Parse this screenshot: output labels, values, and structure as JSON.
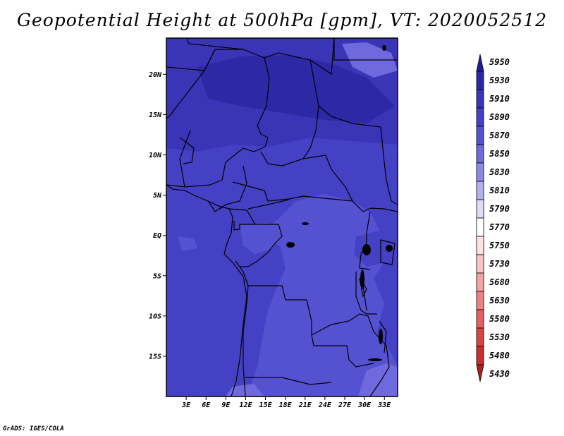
{
  "title": "Geopotential Height at 500hPa [gpm], VT: 2020052512",
  "credit": "GrADS: IGES/COLA",
  "chart_data": {
    "type": "heatmap",
    "variable": "Geopotential Height at 500hPa",
    "units": "gpm",
    "valid_time": "2020052512",
    "lon_range": [
      0,
      35
    ],
    "lat_range": [
      -20,
      24.5
    ],
    "lat_ticks": [
      {
        "v": 20,
        "label": "20N"
      },
      {
        "v": 15,
        "label": "15N"
      },
      {
        "v": 10,
        "label": "10N"
      },
      {
        "v": 5,
        "label": "5N"
      },
      {
        "v": 0,
        "label": "EQ"
      },
      {
        "v": -5,
        "label": "5S"
      },
      {
        "v": -10,
        "label": "10S"
      },
      {
        "v": -15,
        "label": "15S"
      }
    ],
    "lon_ticks": [
      {
        "v": 3,
        "label": "3E"
      },
      {
        "v": 6,
        "label": "6E"
      },
      {
        "v": 9,
        "label": "9E"
      },
      {
        "v": 12,
        "label": "12E"
      },
      {
        "v": 15,
        "label": "15E"
      },
      {
        "v": 18,
        "label": "18E"
      },
      {
        "v": 21,
        "label": "21E"
      },
      {
        "v": 24,
        "label": "24E"
      },
      {
        "v": 27,
        "label": "27E"
      },
      {
        "v": 30,
        "label": "30E"
      },
      {
        "v": 33,
        "label": "33E"
      }
    ],
    "colorbar": [
      {
        "label": "5950",
        "color": "#221e96"
      },
      {
        "label": "5930",
        "color": "#2d28a6"
      },
      {
        "label": "5910",
        "color": "#3a35b6"
      },
      {
        "label": "5890",
        "color": "#4541c4"
      },
      {
        "label": "5870",
        "color": "#5552d2"
      },
      {
        "label": "5850",
        "color": "#6e6ade"
      },
      {
        "label": "5830",
        "color": "#8c89e6"
      },
      {
        "label": "5810",
        "color": "#b2b0ef"
      },
      {
        "label": "5790",
        "color": "#dcdbf8"
      },
      {
        "label": "5770",
        "color": "#ffffff"
      },
      {
        "label": "5750",
        "color": "#fde2e2"
      },
      {
        "label": "5730",
        "color": "#fbc5c5"
      },
      {
        "label": "5680",
        "color": "#f4a3a3"
      },
      {
        "label": "5630",
        "color": "#ec8282"
      },
      {
        "label": "5580",
        "color": "#e26262"
      },
      {
        "label": "5530",
        "color": "#d84444"
      },
      {
        "label": "5480",
        "color": "#c63030"
      },
      {
        "label": "5430",
        "color": "#ad2020"
      }
    ],
    "field_colors": {
      "base": "#4541c4",
      "high": "#3a35b6",
      "higher": "#2d28a6",
      "low": "#5552d2",
      "lower": "#6e6ade"
    }
  }
}
